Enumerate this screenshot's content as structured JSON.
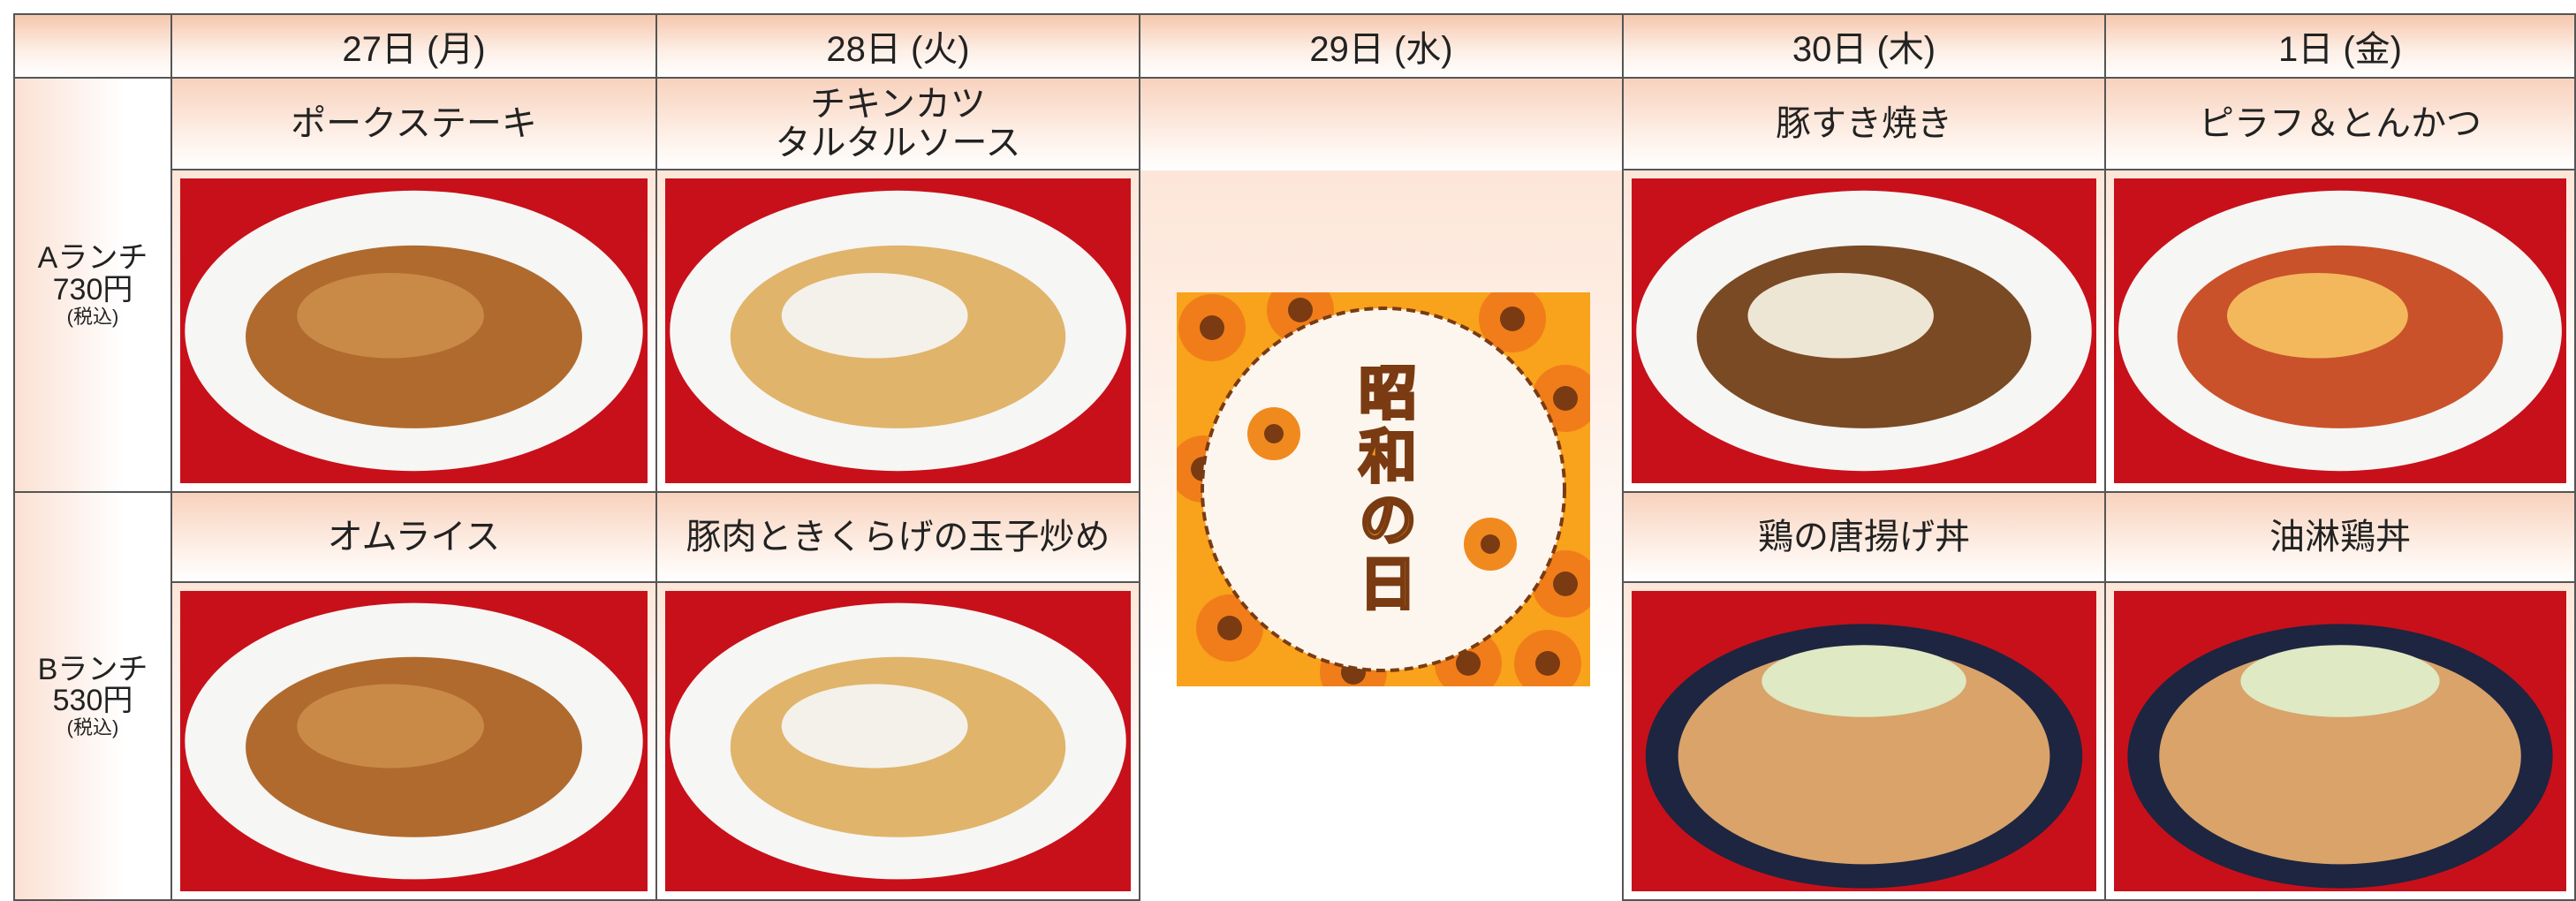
{
  "days": [
    "27日 (月)",
    "28日 (火)",
    "29日 (水)",
    "30日 (木)",
    "1日 (金)"
  ],
  "lunches": [
    {
      "name": "Aランチ",
      "price": "730円",
      "note": "(税込)",
      "dishes": [
        "ポークステーキ",
        "チキンカツ\nタルタルソース",
        "豚すき焼き",
        "ピラフ＆とんかつ"
      ]
    },
    {
      "name": "Bランチ",
      "price": "530円",
      "note": "(税込)",
      "dishes": [
        "オムライス",
        "豚肉ときくらげの玉子炒め",
        "鶏の唐揚げ丼",
        "油淋鶏丼"
      ]
    }
  ],
  "holiday": {
    "label": "昭和の日"
  }
}
